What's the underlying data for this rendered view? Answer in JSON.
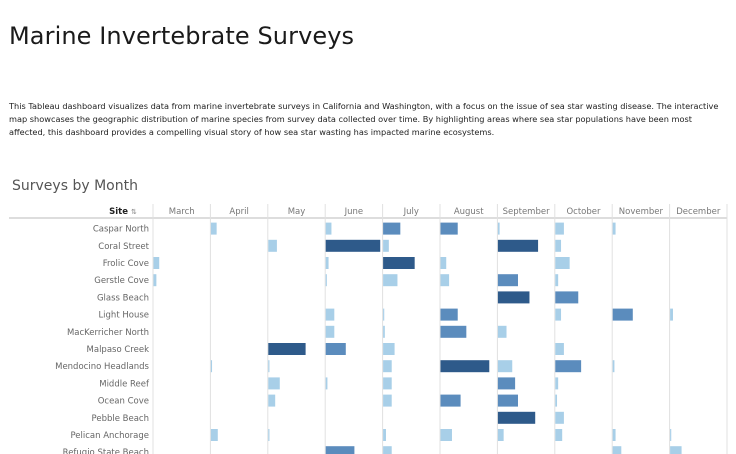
{
  "page": {
    "title": "Marine Invertebrate Surveys",
    "description": "This Tableau dashboard visualizes data from marine invertebrate surveys in California and Washington, with a focus on the issue of sea star wasting disease. The interactive map showcases the geographic distribution of marine species from survey data collected over time. By highlighting areas where sea star populations have been most affected, this dashboard provides a compelling visual story of how sea star wasting has impacted marine ecosystems."
  },
  "chart_data": {
    "type": "bar",
    "title": "Surveys by Month",
    "row_header": "Site",
    "sort_icon": "sort-icon",
    "columns": [
      "March",
      "April",
      "May",
      "June",
      "July",
      "August",
      "September",
      "October",
      "November",
      "December"
    ],
    "max_value": 10,
    "colors": {
      "light": "#a8cfe8",
      "mid": "#5b8cbd",
      "dark": "#2e5a8a"
    },
    "rows": [
      {
        "site": "Caspar North",
        "values": [
          0,
          1,
          0,
          1,
          3,
          3,
          0.3,
          1.5,
          0.5,
          0
        ]
      },
      {
        "site": "Coral Street",
        "values": [
          0,
          0,
          1.5,
          9.5,
          1,
          0,
          7,
          1,
          0,
          0
        ]
      },
      {
        "site": "Frolic Cove",
        "values": [
          1,
          0,
          0,
          0.5,
          5.5,
          1,
          0,
          2.5,
          0,
          0
        ]
      },
      {
        "site": "Gerstle Cove",
        "values": [
          0.5,
          0,
          0,
          0.2,
          2.5,
          1.5,
          3.5,
          0.5,
          0,
          0
        ]
      },
      {
        "site": "Glass Beach",
        "values": [
          0,
          0,
          0,
          0,
          0,
          0,
          5.5,
          4,
          0,
          0
        ]
      },
      {
        "site": "Light House",
        "values": [
          0,
          0,
          0,
          1.5,
          0.2,
          3,
          0,
          1,
          3.5,
          0.5
        ]
      },
      {
        "site": "MacKerricher North",
        "values": [
          0,
          0,
          0,
          1.5,
          0.3,
          4.5,
          1.5,
          0,
          0,
          0
        ]
      },
      {
        "site": "Malpaso Creek",
        "values": [
          0,
          0,
          6.5,
          3.5,
          2,
          0,
          0,
          1.5,
          0,
          0
        ]
      },
      {
        "site": "Mendocino Headlands",
        "values": [
          0,
          0.2,
          0.2,
          0,
          1.5,
          8.5,
          2.5,
          4.5,
          0.3,
          0
        ]
      },
      {
        "site": "Middle Reef",
        "values": [
          0,
          0,
          2,
          0.3,
          1.5,
          0,
          3,
          0.5,
          0,
          0
        ]
      },
      {
        "site": "Ocean Cove",
        "values": [
          0,
          0,
          1.2,
          0,
          1.5,
          3.5,
          3.5,
          0.3,
          0,
          0
        ]
      },
      {
        "site": "Pebble Beach",
        "values": [
          0,
          0,
          0,
          0,
          0,
          0,
          6.5,
          1.5,
          0,
          0
        ]
      },
      {
        "site": "Pelican Anchorage",
        "values": [
          0,
          1.2,
          0.2,
          0,
          0.5,
          2,
          1,
          1.2,
          0.5,
          0.2
        ]
      },
      {
        "site": "Refugio State Beach",
        "values": [
          0,
          0,
          0,
          5,
          1.5,
          0,
          0,
          0,
          1.5,
          2
        ]
      }
    ]
  }
}
